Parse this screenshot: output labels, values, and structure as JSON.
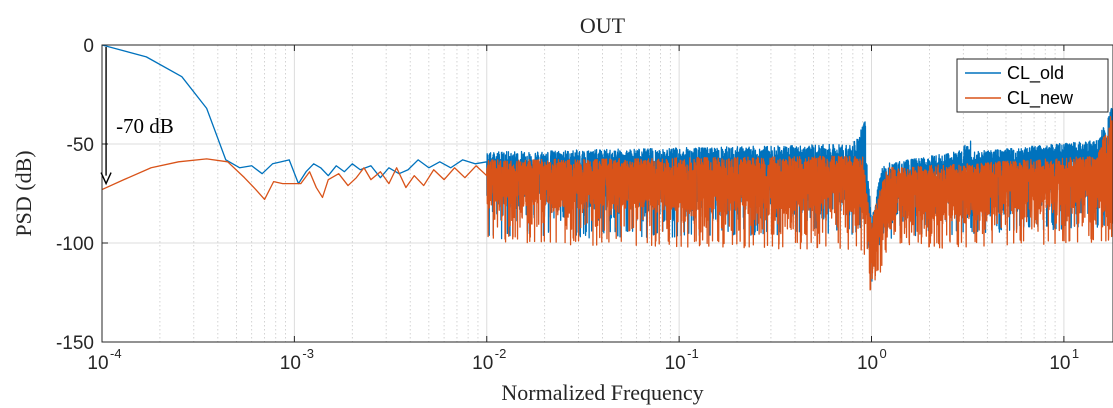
{
  "chart_data": {
    "type": "line",
    "title": "OUT",
    "xlabel": "Normalized Frequency",
    "ylabel": "PSD (dB)",
    "x_scale": "log",
    "xlim": [
      0.0001,
      18
    ],
    "ylim": [
      -150,
      0
    ],
    "x_ticks": [
      {
        "base": "10",
        "exp": "-4",
        "value": 0.0001
      },
      {
        "base": "10",
        "exp": "-3",
        "value": 0.001
      },
      {
        "base": "10",
        "exp": "-2",
        "value": 0.01
      },
      {
        "base": "10",
        "exp": "-1",
        "value": 0.1
      },
      {
        "base": "10",
        "exp": "0",
        "value": 1
      },
      {
        "base": "10",
        "exp": "1",
        "value": 10
      }
    ],
    "y_ticks": [
      {
        "label": "0",
        "value": 0
      },
      {
        "label": "-50",
        "value": -50
      },
      {
        "label": "-100",
        "value": -100
      },
      {
        "label": "-150",
        "value": -150
      }
    ],
    "grid": true,
    "minor_grid_x": true,
    "legend_position": "top-right",
    "series": [
      {
        "name": "CL_old",
        "color": "#0072BD",
        "points": [
          [
            0.0001,
            0
          ],
          [
            0.00017,
            -6
          ],
          [
            0.00026,
            -16
          ],
          [
            0.00035,
            -32
          ],
          [
            0.00044,
            -58
          ],
          [
            0.00052,
            -62
          ],
          [
            0.0006,
            -61
          ],
          [
            0.00068,
            -65
          ],
          [
            0.00077,
            -60
          ],
          [
            0.00085,
            -59
          ],
          [
            0.00094,
            -58
          ],
          [
            0.00105,
            -70
          ],
          [
            0.00115,
            -64
          ],
          [
            0.00126,
            -60
          ],
          [
            0.00137,
            -62
          ],
          [
            0.0015,
            -66
          ],
          [
            0.00165,
            -61
          ],
          [
            0.00182,
            -64
          ],
          [
            0.002,
            -60
          ],
          [
            0.0022,
            -63
          ],
          [
            0.0025,
            -61
          ],
          [
            0.0028,
            -67
          ],
          [
            0.0031,
            -62
          ],
          [
            0.0035,
            -65
          ],
          [
            0.0039,
            -63
          ],
          [
            0.0044,
            -58
          ],
          [
            0.005,
            -62
          ],
          [
            0.0057,
            -59
          ],
          [
            0.0065,
            -62
          ],
          [
            0.0075,
            -58
          ],
          [
            0.0087,
            -60
          ],
          [
            0.01,
            -59
          ]
        ],
        "noise": [
          {
            "f0": 0.01,
            "f1": 0.8,
            "center": [
              -62,
              -59
            ],
            "upper": [
              -54,
              -50
            ],
            "lower": [
              -76,
              -80
            ],
            "spike_min": [
              -98,
              -96
            ]
          },
          {
            "f0": 0.8,
            "f1": 0.93,
            "center": [
              -59,
              -50
            ],
            "upper": [
              -50,
              -38
            ],
            "lower": [
              -80,
              -72
            ],
            "spike_min": [
              -96,
              -90
            ]
          },
          {
            "f0": 0.93,
            "f1": 1.0,
            "center": [
              -60,
              -95
            ],
            "upper": [
              -52,
              -85
            ],
            "lower": [
              -78,
              -110
            ],
            "spike_min": [
              -92,
              -122
            ]
          },
          {
            "f0": 1.0,
            "f1": 1.15,
            "center": [
              -95,
              -72
            ],
            "upper": [
              -85,
              -60
            ],
            "lower": [
              -110,
              -88
            ],
            "spike_min": [
              -122,
              -98
            ]
          },
          {
            "f0": 1.15,
            "f1": 2.7,
            "center": [
              -72,
              -60
            ],
            "upper": [
              -60,
              -54
            ],
            "lower": [
              -88,
              -78
            ],
            "spike_min": [
              -98,
              -96
            ]
          },
          {
            "f0": 2.7,
            "f1": 3.3,
            "center": [
              -60,
              -58
            ],
            "upper": [
              -54,
              -48
            ],
            "lower": [
              -78,
              -76
            ],
            "spike_min": [
              -96,
              -94
            ]
          },
          {
            "f0": 3.3,
            "f1": 15,
            "center": [
              -60,
              -55
            ],
            "upper": [
              -54,
              -48
            ],
            "lower": [
              -78,
              -74
            ],
            "spike_min": [
              -96,
              -92
            ]
          },
          {
            "f0": 15,
            "f1": 18,
            "center": [
              -55,
              -45
            ],
            "upper": [
              -48,
              -28
            ],
            "lower": [
              -74,
              -82
            ],
            "spike_min": [
              -92,
              -96
            ]
          }
        ]
      },
      {
        "name": "CL_new",
        "color": "#D95319",
        "points": [
          [
            0.0001,
            -73
          ],
          [
            0.00013,
            -68
          ],
          [
            0.00018,
            -62
          ],
          [
            0.00025,
            -59
          ],
          [
            0.00035,
            -57.5
          ],
          [
            0.00045,
            -59
          ],
          [
            0.00055,
            -67
          ],
          [
            0.00063,
            -73
          ],
          [
            0.0007,
            -78
          ],
          [
            0.00078,
            -69
          ],
          [
            0.00087,
            -70
          ],
          [
            0.00097,
            -70
          ],
          [
            0.00108,
            -70
          ],
          [
            0.0012,
            -64
          ],
          [
            0.0013,
            -72
          ],
          [
            0.0014,
            -77
          ],
          [
            0.0015,
            -68
          ],
          [
            0.0017,
            -65
          ],
          [
            0.0019,
            -71
          ],
          [
            0.0021,
            -67
          ],
          [
            0.0023,
            -62
          ],
          [
            0.0025,
            -68
          ],
          [
            0.0028,
            -64
          ],
          [
            0.0031,
            -70
          ],
          [
            0.0034,
            -62
          ],
          [
            0.0038,
            -72
          ],
          [
            0.0042,
            -66
          ],
          [
            0.0047,
            -71
          ],
          [
            0.0053,
            -63
          ],
          [
            0.006,
            -68
          ],
          [
            0.0068,
            -62
          ],
          [
            0.0077,
            -67
          ],
          [
            0.0088,
            -61
          ],
          [
            0.01,
            -66
          ]
        ],
        "noise": [
          {
            "f0": 0.01,
            "f1": 0.9,
            "center": [
              -67,
              -66
            ],
            "upper": [
              -58,
              -56
            ],
            "lower": [
              -82,
              -86
            ],
            "spike_min": [
              -100,
              -104
            ]
          },
          {
            "f0": 0.9,
            "f1": 1.0,
            "center": [
              -67,
              -100
            ],
            "upper": [
              -58,
              -88
            ],
            "lower": [
              -86,
              -118
            ],
            "spike_min": [
              -104,
              -130
            ]
          },
          {
            "f0": 1.0,
            "f1": 1.2,
            "center": [
              -100,
              -72
            ],
            "upper": [
              -88,
              -62
            ],
            "lower": [
              -118,
              -90
            ],
            "spike_min": [
              -130,
              -104
            ]
          },
          {
            "f0": 1.2,
            "f1": 15,
            "center": [
              -72,
              -64
            ],
            "upper": [
              -62,
              -56
            ],
            "lower": [
              -90,
              -82
            ],
            "spike_min": [
              -104,
              -100
            ]
          },
          {
            "f0": 15,
            "f1": 18,
            "center": [
              -64,
              -50
            ],
            "upper": [
              -56,
              -30
            ],
            "lower": [
              -82,
              -90
            ],
            "spike_min": [
              -100,
              -100
            ]
          }
        ]
      }
    ],
    "annotation": {
      "text": "-70 dB",
      "arrow_x": 0.000105,
      "arrow_from_y": -1,
      "arrow_to_y": -70
    }
  }
}
